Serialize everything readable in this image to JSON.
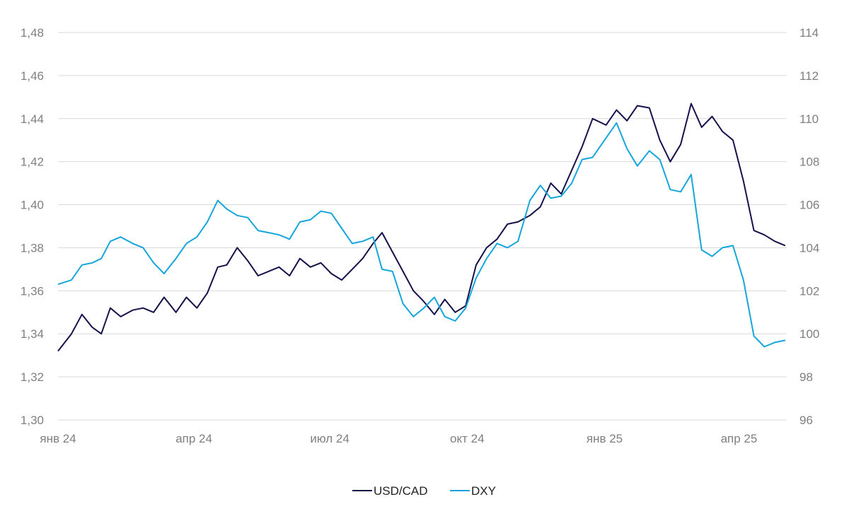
{
  "chart_data": {
    "type": "line",
    "title": "",
    "xlabel": "",
    "ylabel": "",
    "grid": true,
    "legend_position": "bottom-center",
    "x_tick_labels": [
      "янв 24",
      "апр 24",
      "июл 24",
      "окт 24",
      "янв 25",
      "апр 25"
    ],
    "y_left": {
      "ylim": [
        1.3,
        1.48
      ],
      "ticks": [
        "1,30",
        "1,32",
        "1,34",
        "1,36",
        "1,38",
        "1,40",
        "1,42",
        "1,44",
        "1,46",
        "1,48"
      ]
    },
    "y_right": {
      "ylim": [
        96,
        114
      ],
      "ticks": [
        "96",
        "98",
        "100",
        "102",
        "104",
        "106",
        "108",
        "110",
        "112",
        "114"
      ]
    },
    "series": [
      {
        "name": "USD/CAD",
        "axis": "left",
        "color": "#14124a",
        "points": [
          [
            "2024-01-01",
            1.332
          ],
          [
            "2024-01-10",
            1.34
          ],
          [
            "2024-01-17",
            1.349
          ],
          [
            "2024-01-24",
            1.343
          ],
          [
            "2024-01-30",
            1.34
          ],
          [
            "2024-02-05",
            1.352
          ],
          [
            "2024-02-12",
            1.348
          ],
          [
            "2024-02-20",
            1.351
          ],
          [
            "2024-02-27",
            1.352
          ],
          [
            "2024-03-05",
            1.35
          ],
          [
            "2024-03-12",
            1.357
          ],
          [
            "2024-03-20",
            1.35
          ],
          [
            "2024-03-27",
            1.357
          ],
          [
            "2024-04-03",
            1.352
          ],
          [
            "2024-04-10",
            1.359
          ],
          [
            "2024-04-17",
            1.371
          ],
          [
            "2024-04-23",
            1.372
          ],
          [
            "2024-04-30",
            1.38
          ],
          [
            "2024-05-07",
            1.374
          ],
          [
            "2024-05-14",
            1.367
          ],
          [
            "2024-05-21",
            1.369
          ],
          [
            "2024-05-28",
            1.371
          ],
          [
            "2024-06-04",
            1.367
          ],
          [
            "2024-06-11",
            1.375
          ],
          [
            "2024-06-18",
            1.371
          ],
          [
            "2024-06-25",
            1.373
          ],
          [
            "2024-07-02",
            1.368
          ],
          [
            "2024-07-09",
            1.365
          ],
          [
            "2024-07-16",
            1.37
          ],
          [
            "2024-07-23",
            1.375
          ],
          [
            "2024-07-30",
            1.382
          ],
          [
            "2024-08-05",
            1.387
          ],
          [
            "2024-08-12",
            1.378
          ],
          [
            "2024-08-19",
            1.369
          ],
          [
            "2024-08-26",
            1.36
          ],
          [
            "2024-09-02",
            1.355
          ],
          [
            "2024-09-09",
            1.349
          ],
          [
            "2024-09-16",
            1.356
          ],
          [
            "2024-09-23",
            1.35
          ],
          [
            "2024-09-30",
            1.353
          ],
          [
            "2024-10-07",
            1.372
          ],
          [
            "2024-10-14",
            1.38
          ],
          [
            "2024-10-21",
            1.384
          ],
          [
            "2024-10-28",
            1.391
          ],
          [
            "2024-11-04",
            1.392
          ],
          [
            "2024-11-12",
            1.395
          ],
          [
            "2024-11-19",
            1.399
          ],
          [
            "2024-11-26",
            1.41
          ],
          [
            "2024-12-03",
            1.405
          ],
          [
            "2024-12-10",
            1.416
          ],
          [
            "2024-12-17",
            1.427
          ],
          [
            "2024-12-24",
            1.44
          ],
          [
            "2025-01-02",
            1.437
          ],
          [
            "2025-01-09",
            1.444
          ],
          [
            "2025-01-16",
            1.439
          ],
          [
            "2025-01-23",
            1.446
          ],
          [
            "2025-01-31",
            1.445
          ],
          [
            "2025-02-07",
            1.43
          ],
          [
            "2025-02-14",
            1.42
          ],
          [
            "2025-02-21",
            1.428
          ],
          [
            "2025-02-28",
            1.447
          ],
          [
            "2025-03-07",
            1.436
          ],
          [
            "2025-03-14",
            1.441
          ],
          [
            "2025-03-21",
            1.434
          ],
          [
            "2025-03-28",
            1.43
          ],
          [
            "2025-04-04",
            1.411
          ],
          [
            "2025-04-11",
            1.388
          ],
          [
            "2025-04-18",
            1.386
          ],
          [
            "2025-04-25",
            1.383
          ],
          [
            "2025-05-02",
            1.381
          ]
        ]
      },
      {
        "name": "DXY",
        "axis": "right",
        "color": "#16a5dc",
        "points": [
          [
            "2024-01-01",
            102.3
          ],
          [
            "2024-01-10",
            102.5
          ],
          [
            "2024-01-17",
            103.2
          ],
          [
            "2024-01-24",
            103.3
          ],
          [
            "2024-01-30",
            103.5
          ],
          [
            "2024-02-05",
            104.3
          ],
          [
            "2024-02-12",
            104.5
          ],
          [
            "2024-02-20",
            104.2
          ],
          [
            "2024-02-27",
            104.0
          ],
          [
            "2024-03-05",
            103.3
          ],
          [
            "2024-03-12",
            102.8
          ],
          [
            "2024-03-20",
            103.5
          ],
          [
            "2024-03-27",
            104.2
          ],
          [
            "2024-04-03",
            104.5
          ],
          [
            "2024-04-10",
            105.2
          ],
          [
            "2024-04-17",
            106.2
          ],
          [
            "2024-04-23",
            105.8
          ],
          [
            "2024-04-30",
            105.5
          ],
          [
            "2024-05-07",
            105.4
          ],
          [
            "2024-05-14",
            104.8
          ],
          [
            "2024-05-21",
            104.7
          ],
          [
            "2024-05-28",
            104.6
          ],
          [
            "2024-06-04",
            104.4
          ],
          [
            "2024-06-11",
            105.2
          ],
          [
            "2024-06-18",
            105.3
          ],
          [
            "2024-06-25",
            105.7
          ],
          [
            "2024-07-02",
            105.6
          ],
          [
            "2024-07-09",
            104.9
          ],
          [
            "2024-07-16",
            104.2
          ],
          [
            "2024-07-23",
            104.3
          ],
          [
            "2024-07-30",
            104.5
          ],
          [
            "2024-08-05",
            103.0
          ],
          [
            "2024-08-12",
            102.9
          ],
          [
            "2024-08-19",
            101.4
          ],
          [
            "2024-08-26",
            100.8
          ],
          [
            "2024-09-02",
            101.2
          ],
          [
            "2024-09-09",
            101.7
          ],
          [
            "2024-09-16",
            100.8
          ],
          [
            "2024-09-23",
            100.6
          ],
          [
            "2024-09-30",
            101.2
          ],
          [
            "2024-10-07",
            102.6
          ],
          [
            "2024-10-14",
            103.5
          ],
          [
            "2024-10-21",
            104.2
          ],
          [
            "2024-10-28",
            104.0
          ],
          [
            "2024-11-04",
            104.3
          ],
          [
            "2024-11-12",
            106.2
          ],
          [
            "2024-11-19",
            106.9
          ],
          [
            "2024-11-26",
            106.3
          ],
          [
            "2024-12-03",
            106.4
          ],
          [
            "2024-12-10",
            107.0
          ],
          [
            "2024-12-17",
            108.1
          ],
          [
            "2024-12-24",
            108.2
          ],
          [
            "2025-01-02",
            109.1
          ],
          [
            "2025-01-09",
            109.8
          ],
          [
            "2025-01-16",
            108.6
          ],
          [
            "2025-01-23",
            107.8
          ],
          [
            "2025-01-31",
            108.5
          ],
          [
            "2025-02-07",
            108.1
          ],
          [
            "2025-02-14",
            106.7
          ],
          [
            "2025-02-21",
            106.6
          ],
          [
            "2025-02-28",
            107.4
          ],
          [
            "2025-03-07",
            103.9
          ],
          [
            "2025-03-14",
            103.6
          ],
          [
            "2025-03-21",
            104.0
          ],
          [
            "2025-03-28",
            104.1
          ],
          [
            "2025-04-04",
            102.5
          ],
          [
            "2025-04-11",
            99.9
          ],
          [
            "2025-04-18",
            99.4
          ],
          [
            "2025-04-25",
            99.6
          ],
          [
            "2025-05-02",
            99.7
          ]
        ]
      }
    ]
  }
}
